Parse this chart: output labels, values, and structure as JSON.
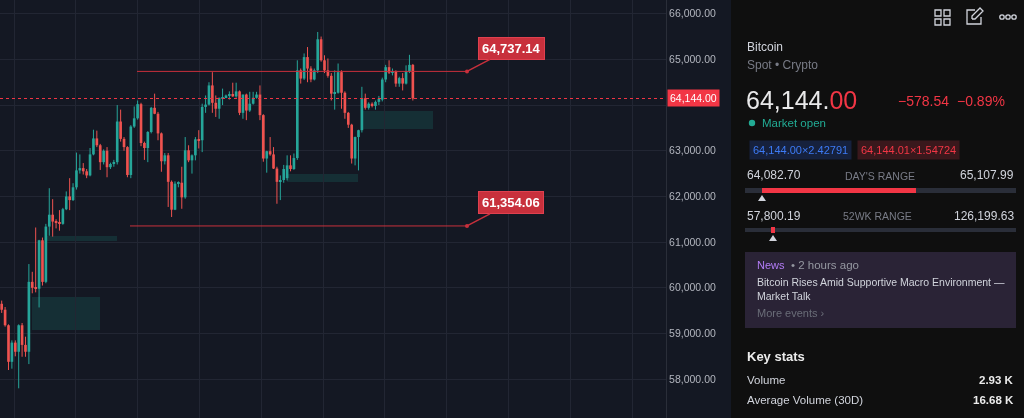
{
  "chart_data": [
    {
      "type": "candlestick",
      "categories": [
        null,
        null,
        null,
        null,
        null,
        null,
        null,
        null,
        null,
        null,
        null,
        null,
        null,
        null,
        null,
        null,
        null,
        null,
        null,
        null,
        null,
        null,
        null,
        null,
        null,
        null,
        null,
        null,
        null,
        null,
        null,
        null,
        null,
        null,
        null,
        null,
        null,
        null,
        null,
        null,
        null,
        null,
        null,
        null,
        null,
        null,
        null,
        null,
        null,
        null,
        null,
        null,
        null,
        null,
        null,
        null,
        null,
        null,
        null,
        null,
        null,
        null,
        null,
        null,
        null,
        null,
        null,
        null,
        null,
        null,
        null,
        null,
        null,
        null,
        null,
        null,
        null,
        null,
        null,
        null,
        null,
        null,
        null,
        null,
        null,
        null,
        null,
        null,
        null,
        null,
        null,
        null,
        null,
        null,
        null,
        null,
        null,
        null,
        null,
        null,
        null,
        null,
        null,
        null,
        null,
        null,
        null,
        null,
        null,
        null,
        null,
        null,
        null,
        null,
        null,
        null,
        null,
        null,
        null,
        null,
        null,
        null,
        null,
        null,
        null,
        null,
        null,
        null,
        null,
        null,
        null,
        null,
        null,
        null,
        null,
        null,
        null,
        null,
        null,
        null,
        null,
        null,
        null,
        null,
        null,
        null,
        null,
        null,
        null,
        null,
        null,
        null,
        null,
        null,
        null,
        null,
        null,
        null,
        null,
        null,
        null,
        null,
        null,
        null,
        null,
        null,
        null,
        null,
        null,
        null,
        null,
        null,
        null,
        null,
        null,
        null,
        null,
        null,
        null,
        null,
        null,
        null,
        null,
        null,
        null,
        null,
        null,
        null,
        null,
        null,
        null,
        null,
        null,
        null,
        null,
        null
      ],
      "ohlc": [
        [
          59650,
          59720,
          59450,
          59520
        ],
        [
          59520,
          59580,
          59150,
          59180
        ],
        [
          59180,
          59200,
          58200,
          58380
        ],
        [
          58380,
          58850,
          58230,
          58800
        ],
        [
          58800,
          58850,
          58500,
          58600
        ],
        [
          58600,
          59200,
          57800,
          59180
        ],
        [
          59180,
          59230,
          58490,
          58750
        ],
        [
          58750,
          58930,
          58490,
          58600
        ],
        [
          58600,
          60520,
          58330,
          60130
        ],
        [
          60130,
          60350,
          59880,
          60000
        ],
        [
          60000,
          61320,
          59900,
          59980
        ],
        [
          59980,
          61050,
          59570,
          61040
        ],
        [
          61040,
          61100,
          60050,
          60130
        ],
        [
          60130,
          61400,
          60100,
          61340
        ],
        [
          61340,
          62180,
          61140,
          61600
        ],
        [
          61600,
          61940,
          61120,
          61450
        ],
        [
          61450,
          61500,
          61300,
          61420
        ],
        [
          61420,
          61700,
          61250,
          61400
        ],
        [
          61400,
          61750,
          61380,
          61720
        ],
        [
          61720,
          62110,
          61700,
          62000
        ],
        [
          62000,
          62400,
          61700,
          61920
        ],
        [
          61920,
          62290,
          61900,
          62200
        ],
        [
          62200,
          62960,
          62150,
          62570
        ],
        [
          62570,
          62920,
          62500,
          62620
        ],
        [
          62620,
          62730,
          62480,
          62550
        ],
        [
          62550,
          62600,
          62400,
          62460
        ],
        [
          62460,
          63060,
          62440,
          62920
        ],
        [
          62920,
          63460,
          62900,
          63270
        ],
        [
          63270,
          63440,
          63080,
          63120
        ],
        [
          63120,
          63150,
          62580,
          62750
        ],
        [
          62750,
          63030,
          62700,
          63000
        ],
        [
          63000,
          63080,
          62420,
          62640
        ],
        [
          62640,
          62740,
          62600,
          62710
        ],
        [
          62710,
          62800,
          62650,
          62750
        ],
        [
          62750,
          64000,
          62700,
          63640
        ],
        [
          63640,
          63900,
          63200,
          63260
        ],
        [
          63260,
          63300,
          63000,
          63080
        ],
        [
          63080,
          63100,
          62420,
          62470
        ],
        [
          62470,
          63560,
          62400,
          63530
        ],
        [
          63530,
          63970,
          63500,
          63710
        ],
        [
          63710,
          64100,
          63680,
          64020
        ],
        [
          64020,
          64050,
          63100,
          63170
        ],
        [
          63170,
          63200,
          62800,
          63060
        ],
        [
          63060,
          63430,
          62750,
          63410
        ],
        [
          63410,
          63960,
          63380,
          63940
        ],
        [
          63940,
          64250,
          63800,
          63810
        ],
        [
          63810,
          63850,
          63230,
          63380
        ],
        [
          63380,
          63400,
          62540,
          62770
        ],
        [
          62770,
          62950,
          62700,
          62900
        ],
        [
          62900,
          62950,
          61770,
          62320
        ],
        [
          62320,
          62350,
          61550,
          61710
        ],
        [
          61710,
          62330,
          61700,
          62280
        ],
        [
          62280,
          62330,
          62200,
          62300
        ],
        [
          62300,
          62650,
          61730,
          61980
        ],
        [
          61980,
          63300,
          61950,
          63010
        ],
        [
          63010,
          63120,
          62750,
          62790
        ],
        [
          62790,
          62920,
          62500,
          62900
        ],
        [
          62900,
          63300,
          62790,
          63250
        ],
        [
          63250,
          63450,
          63050,
          63230
        ],
        [
          63230,
          64030,
          62970,
          63960
        ],
        [
          63960,
          64210,
          63830,
          64010
        ],
        [
          64010,
          64500,
          63990,
          64430
        ],
        [
          64430,
          64720,
          63830,
          64050
        ],
        [
          64050,
          64210,
          63740,
          63920
        ],
        [
          63920,
          64160,
          63700,
          64160
        ],
        [
          64140,
          64360,
          64000,
          64170
        ],
        [
          64170,
          64230,
          64150,
          64210
        ],
        [
          64210,
          64300,
          64120,
          64230
        ],
        [
          64230,
          64490,
          64180,
          64190
        ],
        [
          64190,
          64490,
          64160,
          64300
        ],
        [
          64300,
          64320,
          63780,
          63830
        ],
        [
          63830,
          64230,
          63700,
          64230
        ],
        [
          64230,
          64250,
          63670,
          63880
        ],
        [
          63880,
          64290,
          63850,
          64030
        ],
        [
          64030,
          64290,
          64010,
          64160
        ],
        [
          64160,
          64290,
          64140,
          64230
        ],
        [
          64230,
          64430,
          63670,
          63780
        ],
        [
          63780,
          63800,
          62760,
          62830
        ],
        [
          62830,
          63000,
          62520,
          62990
        ],
        [
          62990,
          63300,
          62890,
          62920
        ],
        [
          62920,
          63080,
          62600,
          62610
        ],
        [
          62610,
          62650,
          61840,
          62320
        ],
        [
          62320,
          62460,
          61920,
          62360
        ],
        [
          62360,
          62690,
          62300,
          62600
        ],
        [
          62400,
          62900,
          62350,
          62680
        ],
        [
          62680,
          62900,
          62550,
          62600
        ],
        [
          62600,
          62940,
          62580,
          62840
        ],
        [
          62840,
          64980,
          62800,
          64760
        ],
        [
          64760,
          64800,
          64470,
          64580
        ],
        [
          64580,
          65130,
          64550,
          65050
        ],
        [
          65050,
          65270,
          64500,
          64800
        ],
        [
          64800,
          64850,
          64500,
          64560
        ],
        [
          64560,
          64800,
          64540,
          64760
        ],
        [
          64760,
          65600,
          64700,
          65440
        ],
        [
          65440,
          65500,
          64950,
          64980
        ],
        [
          64980,
          65090,
          64700,
          64760
        ],
        [
          64760,
          65020,
          64600,
          64640
        ],
        [
          64640,
          64700,
          64100,
          64250
        ],
        [
          64250,
          64760,
          63900,
          64270
        ],
        [
          64270,
          64910,
          64250,
          64720
        ],
        [
          64720,
          64760,
          63920,
          64270
        ],
        [
          64270,
          64300,
          63700,
          63830
        ],
        [
          63830,
          63850,
          63500,
          63570
        ],
        [
          63570,
          63590,
          62720,
          62830
        ],
        [
          62830,
          63310,
          62680,
          63300
        ],
        [
          63300,
          63460,
          62570,
          63450
        ],
        [
          63450,
          64400,
          63400,
          64150
        ],
        [
          64150,
          64250,
          63900,
          63940
        ],
        [
          63940,
          64060,
          63900,
          64030
        ],
        [
          64030,
          64060,
          63950,
          63980
        ],
        [
          63980,
          64100,
          63900,
          64070
        ],
        [
          64070,
          64200,
          64000,
          64140
        ],
        [
          64120,
          64600,
          64080,
          64560
        ],
        [
          64560,
          64880,
          64500,
          64830
        ],
        [
          64830,
          64980,
          64680,
          64710
        ],
        [
          64710,
          64800,
          64650,
          64740
        ],
        [
          64740,
          64760,
          64400,
          64470
        ],
        [
          64470,
          64620,
          64400,
          64590
        ],
        [
          64590,
          64700,
          64320,
          64470
        ],
        [
          64470,
          64870,
          64450,
          64740
        ],
        [
          64740,
          65100,
          64700,
          64880
        ],
        [
          64880,
          64900,
          64100,
          64144
        ],
        null,
        null,
        null,
        null,
        null,
        null,
        null,
        null,
        null,
        null,
        null,
        null,
        null,
        null,
        null,
        null,
        null,
        null,
        null,
        null,
        null,
        null,
        null,
        null,
        null,
        null,
        null,
        null,
        null,
        null,
        null,
        null,
        null,
        null,
        null,
        null,
        null,
        null,
        null,
        null,
        null,
        null,
        null,
        null,
        null,
        null,
        null,
        null,
        null,
        null,
        null,
        null,
        null,
        null,
        null,
        null,
        null,
        null,
        null,
        null,
        null,
        null,
        null,
        null,
        null,
        null,
        null,
        null,
        null,
        null,
        null,
        null,
        null,
        null
      ],
      "colors": [
        "#ef5350",
        "#ef5350",
        "#ef5350",
        "#26a69a",
        "#ef5350",
        "#26a69a",
        "#ef5350",
        "#ef5350",
        "#26a69a",
        "#ef5350",
        "#ef5350",
        "#26a69a",
        "#ef5350",
        "#26a69a",
        "#26a69a",
        "#ef5350",
        "#ef5350",
        "#ef5350",
        "#26a69a",
        "#26a69a",
        "#ef5350",
        "#26a69a",
        "#26a69a",
        "#26a69a",
        "#ef5350",
        "#ef5350",
        "#26a69a",
        "#26a69a",
        "#ef5350",
        "#ef5350",
        "#26a69a",
        "#ef5350",
        "#26a69a",
        "#26a69a",
        "#26a69a",
        "#ef5350",
        "#ef5350",
        "#ef5350",
        "#26a69a",
        "#26a69a",
        "#26a69a",
        "#ef5350",
        "#ef5350",
        "#26a69a",
        "#26a69a",
        "#ef5350",
        "#ef5350",
        "#ef5350",
        "#26a69a",
        "#ef5350",
        "#ef5350",
        "#26a69a",
        "#26a69a",
        "#ef5350",
        "#26a69a",
        "#ef5350",
        "#26a69a",
        "#26a69a",
        "#ef5350",
        "#26a69a",
        "#26a69a",
        "#26a69a",
        "#ef5350",
        "#ef5350",
        "#26a69a",
        "#26a69a",
        "#26a69a",
        "#26a69a",
        "#ef5350",
        "#26a69a",
        "#ef5350",
        "#26a69a",
        "#ef5350",
        "#26a69a",
        "#26a69a",
        "#26a69a",
        "#ef5350",
        "#ef5350",
        "#26a69a",
        "#ef5350",
        "#ef5350",
        "#ef5350",
        "#26a69a",
        "#26a69a",
        "#26a69a",
        "#ef5350",
        "#26a69a",
        "#26a69a",
        "#ef5350",
        "#26a69a",
        "#ef5350",
        "#ef5350",
        "#26a69a",
        "#26a69a",
        "#ef5350",
        "#ef5350",
        "#ef5350",
        "#ef5350",
        "#26a69a",
        "#26a69a",
        "#ef5350",
        "#ef5350",
        "#ef5350",
        "#ef5350",
        "#26a69a",
        "#26a69a",
        "#26a69a",
        "#ef5350",
        "#26a69a",
        "#ef5350",
        "#26a69a",
        "#26a69a",
        "#26a69a",
        "#26a69a",
        "#ef5350",
        "#26a69a",
        "#ef5350",
        "#26a69a",
        "#ef5350",
        "#26a69a",
        "#26a69a",
        "#ef5350",
        null,
        null,
        null,
        null,
        null,
        null,
        null,
        null,
        null,
        null,
        null,
        null,
        null,
        null,
        null,
        null,
        null,
        null,
        null,
        null,
        null,
        null,
        null,
        null,
        null,
        null,
        null,
        null,
        null,
        null,
        null,
        null,
        null,
        null,
        null,
        null,
        null,
        null,
        null,
        null,
        null,
        null,
        null,
        null,
        null,
        null,
        null,
        null,
        null,
        null,
        null,
        null,
        null,
        null,
        null,
        null,
        null,
        null,
        null,
        null,
        null,
        null,
        null,
        null,
        null,
        null,
        null,
        null,
        null,
        null,
        null,
        null,
        null,
        null
      ],
      "ylim": [
        57150,
        66300
      ],
      "yticks": [
        {
          "value": 58000,
          "label": "58,000.00"
        },
        {
          "value": 59000,
          "label": "59,000.00"
        },
        {
          "value": 60000,
          "label": "60,000.00"
        },
        {
          "value": 61000,
          "label": "61,000.00"
        },
        {
          "value": 62000,
          "label": "62,000.00"
        },
        {
          "value": 63000,
          "label": "63,000.00"
        },
        {
          "value": 64000,
          "label": null
        },
        {
          "value": 65000,
          "label": "65,000.00"
        },
        {
          "value": 66000,
          "label": "66,000.00"
        }
      ],
      "grid": true,
      "tick_labels": "y",
      "ref_lines": [
        {
          "axis": "y",
          "value": 64144,
          "label": "64,144.00",
          "color": "#f23645",
          "line_style": "dotted"
        },
        {
          "axis": "y",
          "value": 64737.14,
          "label": "64,737.14",
          "color": "#c8303c",
          "line_style": "solid"
        },
        {
          "axis": "y",
          "value": 61354.06,
          "label": "61,354.06",
          "color": "#c8303c",
          "line_style": "solid"
        }
      ]
    },
    {
      "type": "other",
      "annotations": [
        "Bitcoin",
        "Spot • Crypto",
        "64,144.00",
        "−578.54",
        "−0.89%",
        "Market open",
        "64,144.00×2.42791",
        "64,144.01×1.54724",
        "64,082.70",
        "DAY'S RANGE",
        "65,107.99",
        "57,800.19",
        "52WK RANGE",
        "126,199.63",
        "News",
        "• 2 hours ago",
        "Bitcoin Rises Amid Supportive Macro Environment — Market Talk",
        "More events ›",
        "Key stats",
        "Volume",
        "2.93 K",
        "Average Volume (30D)",
        "16.68 K"
      ]
    }
  ]
}
